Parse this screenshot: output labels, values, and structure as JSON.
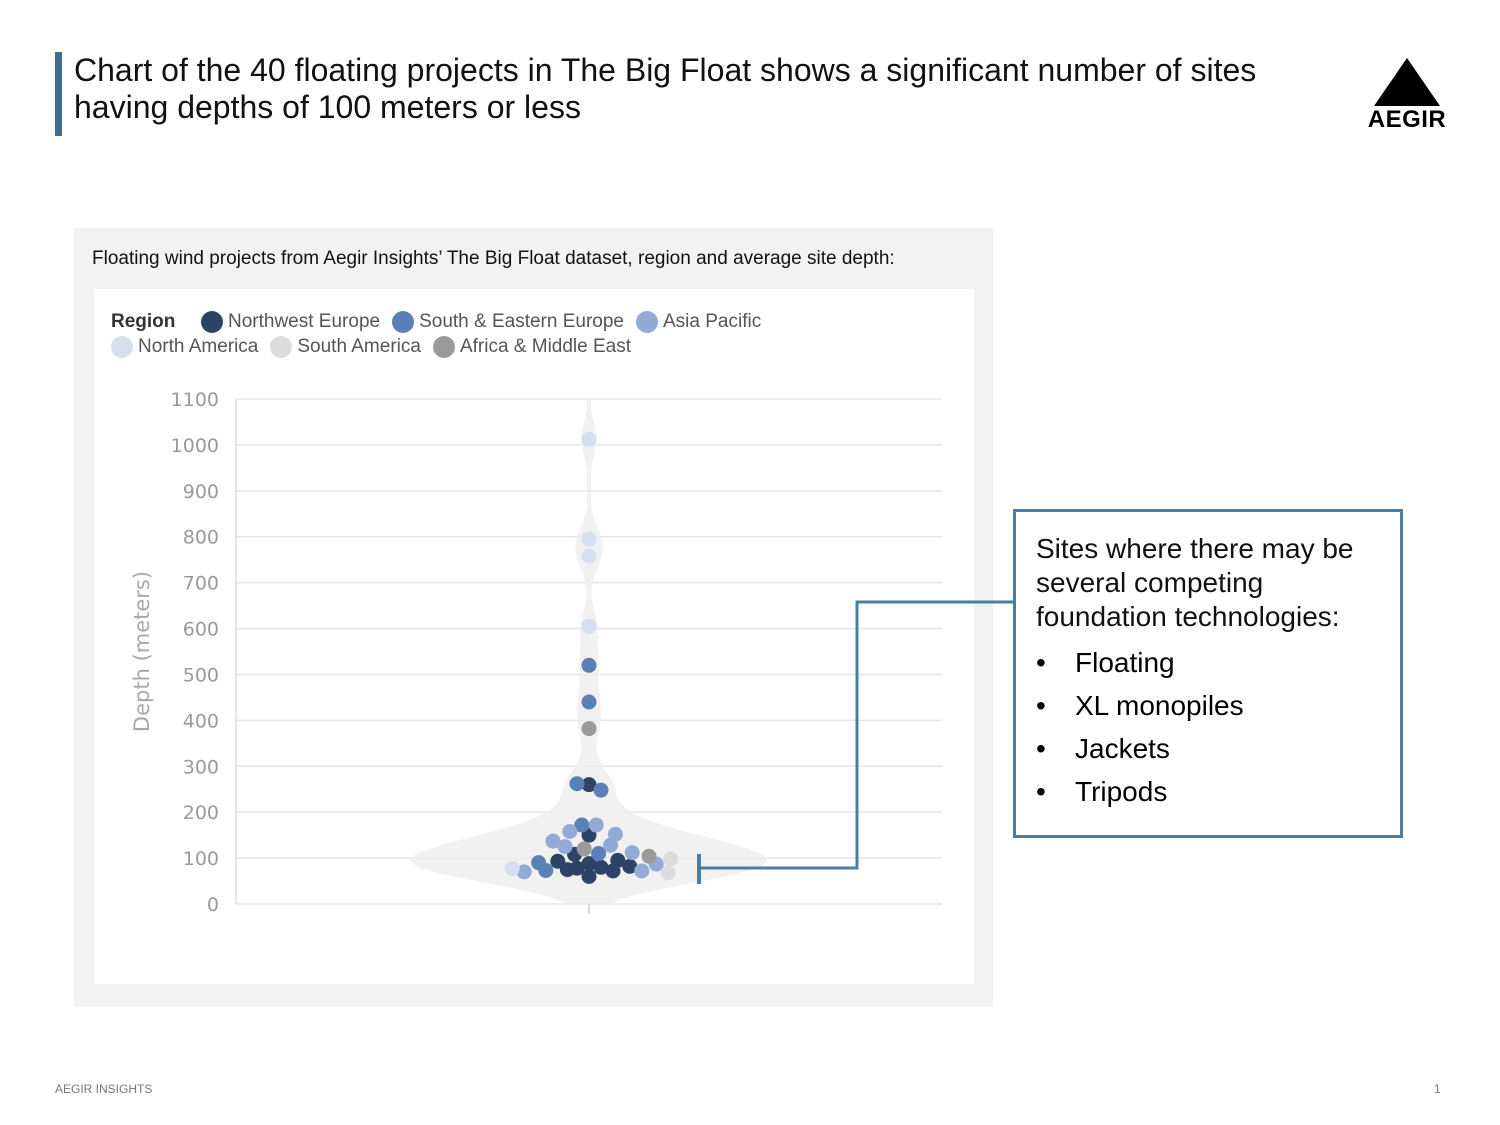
{
  "header": {
    "title": "Chart of the 40 floating projects in The Big Float shows a significant number of sites having depths of 100 meters or less",
    "logo_text": "AEGIR"
  },
  "panel": {
    "caption": "Floating wind projects from Aegir Insights’ The Big Float dataset, region and average site depth:"
  },
  "callout": {
    "intro": "Sites where there may be several competing foundation technologies:",
    "bullet_char": "•",
    "items": [
      "Floating",
      "XL monopiles",
      "Jackets",
      "Tripods"
    ]
  },
  "footer": {
    "left": "AEGIR INSIGHTS",
    "page": "1"
  },
  "colors": {
    "title_accent": "#3f6e8f",
    "callout_border": "#4a7ea3",
    "violin_fill": "#eeeeee"
  },
  "chart_data": {
    "type": "scatter",
    "subtype": "beeswarm-violin",
    "ylabel": "Depth (meters)",
    "xlabel": "",
    "ylim": [
      0,
      1100
    ],
    "yticks": [
      "0",
      "100",
      "200",
      "300",
      "400",
      "500",
      "600",
      "700",
      "800",
      "900",
      "1000",
      "1100"
    ],
    "grid": true,
    "legend_title": "Region",
    "legend_position": "top-left",
    "series": [
      {
        "name": "Northwest Europe",
        "color": "#2e4466",
        "points": [
          {
            "offset": 0.0,
            "y": 260
          },
          {
            "offset": -0.26,
            "y": 93
          },
          {
            "offset": -0.12,
            "y": 108
          },
          {
            "offset": 0.0,
            "y": 150
          },
          {
            "offset": 0.0,
            "y": 88
          },
          {
            "offset": -0.1,
            "y": 78
          },
          {
            "offset": -0.18,
            "y": 75
          },
          {
            "offset": 0.0,
            "y": 60
          },
          {
            "offset": 0.1,
            "y": 80
          },
          {
            "offset": 0.2,
            "y": 72
          },
          {
            "offset": 0.24,
            "y": 95
          },
          {
            "offset": 0.34,
            "y": 82
          }
        ]
      },
      {
        "name": "South & Eastern Europe",
        "color": "#5b80b5",
        "points": [
          {
            "offset": 0.0,
            "y": 520
          },
          {
            "offset": 0.0,
            "y": 440
          },
          {
            "offset": -0.1,
            "y": 262
          },
          {
            "offset": 0.1,
            "y": 248
          },
          {
            "offset": -0.06,
            "y": 172
          },
          {
            "offset": -0.42,
            "y": 90
          },
          {
            "offset": -0.36,
            "y": 73
          },
          {
            "offset": 0.08,
            "y": 110
          }
        ]
      },
      {
        "name": "Asia Pacific",
        "color": "#93abd4",
        "points": [
          {
            "offset": -0.16,
            "y": 158
          },
          {
            "offset": 0.06,
            "y": 172
          },
          {
            "offset": -0.3,
            "y": 137
          },
          {
            "offset": -0.2,
            "y": 125
          },
          {
            "offset": 0.22,
            "y": 152
          },
          {
            "offset": 0.18,
            "y": 128
          },
          {
            "offset": 0.36,
            "y": 112
          },
          {
            "offset": 0.44,
            "y": 72
          },
          {
            "offset": -0.54,
            "y": 70
          },
          {
            "offset": 0.56,
            "y": 87
          }
        ]
      },
      {
        "name": "North America",
        "color": "#d6dfee",
        "points": [
          {
            "offset": 0.0,
            "y": 1012
          },
          {
            "offset": 0.0,
            "y": 795
          },
          {
            "offset": 0.0,
            "y": 758
          },
          {
            "offset": 0.0,
            "y": 605
          },
          {
            "offset": -0.64,
            "y": 77
          }
        ]
      },
      {
        "name": "South America",
        "color": "#dcdcdc",
        "points": [
          {
            "offset": 0.68,
            "y": 98
          },
          {
            "offset": 0.66,
            "y": 68
          }
        ]
      },
      {
        "name": "Africa & Middle East",
        "color": "#9a9a9a",
        "points": [
          {
            "offset": 0.0,
            "y": 382
          },
          {
            "offset": -0.04,
            "y": 120
          },
          {
            "offset": 0.5,
            "y": 104
          }
        ]
      }
    ],
    "annotation": "bracket at ~100 m connecting to callout box"
  }
}
